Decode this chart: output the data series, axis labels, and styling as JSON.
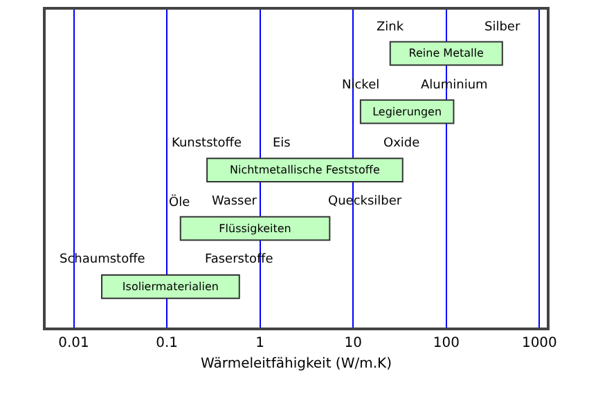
{
  "chart_data": {
    "type": "bar",
    "orientation": "horizontal",
    "xlabel": "Wärmeleitfähigkeit (W/m.K)",
    "categories": [
      "Reine Metalle",
      "Legierungen",
      "Nichtmetallische Feststoffe",
      "Flüssigkeiten",
      "Isoliermaterialien"
    ],
    "base": [
      25,
      12,
      0.27,
      0.14,
      0.02
    ],
    "values": [
      375,
      108,
      33.73,
      5.46,
      0.58
    ],
    "color": "#c0ffc0",
    "log": "x",
    "xlim": [
      0.005,
      1200
    ],
    "xticks": [
      0.01,
      0.1,
      1,
      10,
      100,
      1000
    ],
    "grid": "x",
    "tick_labels": "x",
    "annotations": [
      {
        "text": "Zink",
        "x": 25,
        "y": "Reine Metalle"
      },
      {
        "text": "Silber",
        "x": 400,
        "y": "Reine Metalle"
      },
      {
        "text": "Nickel",
        "x": 12,
        "y": "Legierungen"
      },
      {
        "text": "Aluminium",
        "x": 120,
        "y": "Legierungen"
      },
      {
        "text": "Kunststoffe",
        "x": 0.27,
        "y": "Nichtmetallische Feststoffe"
      },
      "Eis",
      {
        "text": "Oxide",
        "x": 34,
        "y": "Nichtmetallische Feststoffe"
      },
      {
        "text": "Öle",
        "x": 0.14,
        "y": "Flüssigkeiten"
      },
      "Wasser",
      "Quecksilber",
      {
        "text": "Schaumstoffe",
        "x": 0.02,
        "y": "Isoliermaterialien"
      },
      {
        "text": "Faserstoffe",
        "x": 0.6,
        "y": "Isoliermaterialien"
      }
    ]
  }
}
